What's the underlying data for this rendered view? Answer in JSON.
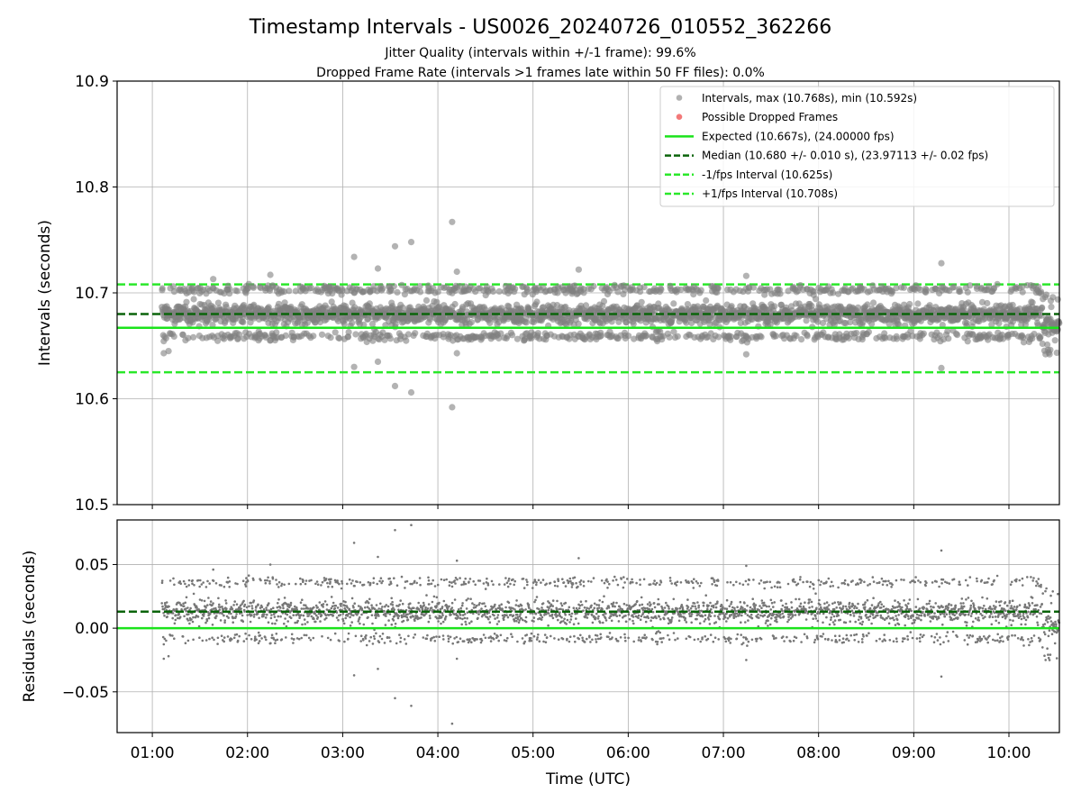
{
  "figure": {
    "title": "Timestamp Intervals - US0026_20240726_010552_362266",
    "subtitle_1": "Jitter Quality (intervals within +/-1 frame): 99.6%",
    "subtitle_2": "Dropped Frame Rate (intervals >1 frames late within 50 FF files): 0.0%"
  },
  "colors": {
    "points": "#808080",
    "dropped": "#f26a6a",
    "expected": "#1be31b",
    "median": "#0b640b",
    "fps_band": "#2ae82a",
    "grid": "#b0b0b0"
  },
  "chart_data": [
    {
      "type": "scatter",
      "name": "intervals",
      "ylabel": "Intervals (seconds)",
      "ylim": [
        10.5,
        10.9
      ],
      "yticks": [
        "10.5",
        "10.6",
        "10.7",
        "10.8",
        "10.9"
      ],
      "xrange_hours": [
        0.63,
        10.53
      ],
      "grid": true,
      "legend_position": "top-right",
      "legend": [
        {
          "label": "Intervals, max (10.768s), min (10.592s)",
          "kind": "dot",
          "color": "#a9a9a9"
        },
        {
          "label": "Possible Dropped Frames",
          "kind": "dot",
          "color": "#f26a6a"
        },
        {
          "label": "Expected (10.667s), (24.00000 fps)",
          "kind": "solid",
          "color": "#1be31b"
        },
        {
          "label": "Median (10.680 +/- 0.010 s), (23.97113 +/- 0.02 fps)",
          "kind": "dashed",
          "color": "#0b640b"
        },
        {
          "label": "-1/fps Interval (10.625s)",
          "kind": "dashed",
          "color": "#2ae82a"
        },
        {
          "label": "+1/fps Interval (10.708s)",
          "kind": "dashed",
          "color": "#2ae82a"
        }
      ],
      "reference_lines": {
        "expected": 10.667,
        "median": 10.68,
        "minus_fps": 10.625,
        "plus_fps": 10.708
      },
      "data_start_hour": 1.1,
      "data_end_hour": 10.53,
      "approx_point_count": 3150,
      "typical_range": [
        10.658,
        10.705
      ],
      "outliers": [
        {
          "x": 3.12,
          "y": 10.734
        },
        {
          "x": 3.37,
          "y": 10.723
        },
        {
          "x": 3.55,
          "y": 10.744
        },
        {
          "x": 3.72,
          "y": 10.748
        },
        {
          "x": 4.15,
          "y": 10.767
        },
        {
          "x": 4.2,
          "y": 10.72
        },
        {
          "x": 2.24,
          "y": 10.717
        },
        {
          "x": 1.64,
          "y": 10.713
        },
        {
          "x": 5.48,
          "y": 10.722
        },
        {
          "x": 7.24,
          "y": 10.716
        },
        {
          "x": 9.29,
          "y": 10.728
        },
        {
          "x": 3.12,
          "y": 10.63
        },
        {
          "x": 3.37,
          "y": 10.635
        },
        {
          "x": 3.55,
          "y": 10.612
        },
        {
          "x": 3.72,
          "y": 10.606
        },
        {
          "x": 4.15,
          "y": 10.592
        },
        {
          "x": 4.2,
          "y": 10.643
        },
        {
          "x": 7.24,
          "y": 10.642
        },
        {
          "x": 9.29,
          "y": 10.629
        },
        {
          "x": 1.12,
          "y": 10.643
        },
        {
          "x": 1.17,
          "y": 10.645
        }
      ]
    },
    {
      "type": "scatter",
      "name": "residuals",
      "xlabel": "Time (UTC)",
      "ylabel": "Residuals (seconds)",
      "ylim": [
        -0.082,
        0.085
      ],
      "yticks": [
        "−0.05",
        "0.00",
        "0.05"
      ],
      "ytick_values": [
        -0.05,
        0,
        0.05
      ],
      "xticks": [
        "01:00",
        "02:00",
        "03:00",
        "04:00",
        "05:00",
        "06:00",
        "07:00",
        "08:00",
        "09:00",
        "10:00"
      ],
      "xtick_hours": [
        1,
        2,
        3,
        4,
        5,
        6,
        7,
        8,
        9,
        10
      ],
      "reference_lines": {
        "zero": 0.0,
        "median": 0.013
      },
      "grid": true
    }
  ]
}
